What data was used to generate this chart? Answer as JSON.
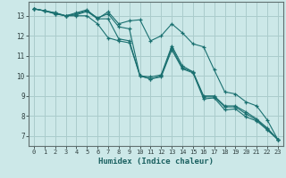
{
  "bg_color": "#cce8e8",
  "grid_color": "#aacccc",
  "line_color": "#1a7070",
  "xlabel": "Humidex (Indice chaleur)",
  "xlim": [
    -0.5,
    23.5
  ],
  "ylim": [
    6.5,
    13.7
  ],
  "yticks": [
    7,
    8,
    9,
    10,
    11,
    12,
    13
  ],
  "xticks": [
    0,
    1,
    2,
    3,
    4,
    5,
    6,
    7,
    8,
    9,
    10,
    11,
    12,
    13,
    14,
    15,
    16,
    17,
    18,
    19,
    20,
    21,
    22,
    23
  ],
  "series": [
    [
      13.35,
      13.25,
      13.15,
      13.0,
      13.05,
      13.22,
      12.85,
      12.85,
      11.85,
      11.75,
      10.0,
      9.95,
      10.05,
      11.5,
      10.5,
      10.2,
      9.0,
      9.0,
      8.5,
      8.5,
      8.2,
      7.85,
      7.4,
      6.82
    ],
    [
      13.35,
      13.25,
      13.15,
      13.0,
      13.1,
      13.25,
      12.9,
      13.1,
      12.45,
      12.35,
      10.0,
      9.85,
      10.0,
      11.4,
      10.4,
      10.2,
      8.95,
      8.95,
      8.45,
      8.45,
      8.1,
      7.8,
      7.35,
      6.82
    ],
    [
      13.35,
      13.25,
      13.1,
      13.0,
      13.15,
      13.3,
      12.85,
      13.2,
      12.6,
      12.75,
      12.8,
      11.75,
      12.0,
      12.6,
      12.15,
      11.6,
      11.45,
      10.3,
      9.2,
      9.1,
      8.7,
      8.5,
      7.8,
      6.82
    ],
    [
      13.35,
      13.25,
      13.1,
      13.0,
      13.0,
      13.0,
      12.6,
      11.9,
      11.75,
      11.65,
      10.0,
      9.85,
      9.95,
      11.3,
      10.35,
      10.15,
      8.85,
      8.9,
      8.3,
      8.35,
      7.95,
      7.75,
      7.3,
      6.82
    ]
  ]
}
